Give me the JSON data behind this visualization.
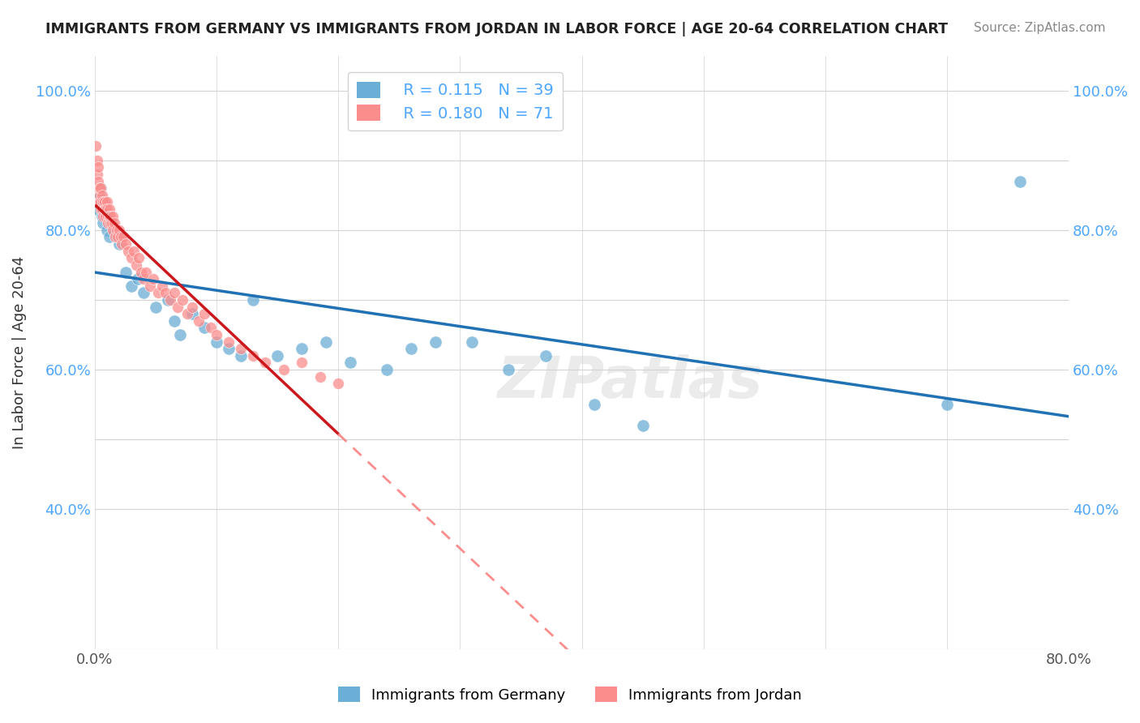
{
  "title": "IMMIGRANTS FROM GERMANY VS IMMIGRANTS FROM JORDAN IN LABOR FORCE | AGE 20-64 CORRELATION CHART",
  "source": "Source: ZipAtlas.com",
  "xlabel_label": "Immigrants from Germany",
  "ylabel_label": "In Labor Force | Age 20-64",
  "legend_label1": "Immigrants from Germany",
  "legend_label2": "Immigrants from Jordan",
  "R_germany": 0.115,
  "N_germany": 39,
  "R_jordan": 0.18,
  "N_jordan": 71,
  "xlim": [
    0.0,
    0.8
  ],
  "ylim": [
    0.2,
    1.05
  ],
  "color_germany": "#6baed6",
  "color_jordan": "#fc8d8d",
  "color_germany_line": "#2171b5",
  "color_jordan_line": "#cb181d",
  "color_jordan_dashed": "#fc8d8d",
  "watermark": "ZIPatlas",
  "germany_x": [
    0.001,
    0.002,
    0.003,
    0.004,
    0.005,
    0.006,
    0.007,
    0.008,
    0.01,
    0.012,
    0.02,
    0.025,
    0.03,
    0.035,
    0.04,
    0.05,
    0.06,
    0.065,
    0.07,
    0.08,
    0.09,
    0.1,
    0.11,
    0.12,
    0.13,
    0.15,
    0.17,
    0.19,
    0.21,
    0.24,
    0.26,
    0.28,
    0.31,
    0.34,
    0.37,
    0.41,
    0.45,
    0.7,
    0.76
  ],
  "germany_y": [
    0.83,
    0.84,
    0.83,
    0.85,
    0.86,
    0.82,
    0.81,
    0.84,
    0.8,
    0.79,
    0.78,
    0.74,
    0.72,
    0.73,
    0.71,
    0.69,
    0.7,
    0.67,
    0.65,
    0.68,
    0.66,
    0.64,
    0.63,
    0.62,
    0.7,
    0.62,
    0.63,
    0.64,
    0.61,
    0.6,
    0.63,
    0.64,
    0.64,
    0.6,
    0.62,
    0.55,
    0.52,
    0.55,
    0.87
  ],
  "jordan_x": [
    0.001,
    0.002,
    0.002,
    0.003,
    0.003,
    0.003,
    0.004,
    0.004,
    0.004,
    0.005,
    0.005,
    0.005,
    0.006,
    0.006,
    0.007,
    0.007,
    0.008,
    0.008,
    0.009,
    0.009,
    0.01,
    0.01,
    0.011,
    0.011,
    0.012,
    0.012,
    0.013,
    0.013,
    0.014,
    0.015,
    0.015,
    0.016,
    0.017,
    0.018,
    0.019,
    0.02,
    0.021,
    0.022,
    0.023,
    0.025,
    0.027,
    0.03,
    0.032,
    0.034,
    0.036,
    0.038,
    0.04,
    0.042,
    0.045,
    0.048,
    0.052,
    0.055,
    0.058,
    0.062,
    0.065,
    0.068,
    0.072,
    0.076,
    0.08,
    0.085,
    0.09,
    0.095,
    0.1,
    0.11,
    0.12,
    0.13,
    0.14,
    0.155,
    0.17,
    0.185,
    0.2
  ],
  "jordan_y": [
    0.92,
    0.9,
    0.88,
    0.86,
    0.87,
    0.89,
    0.84,
    0.85,
    0.86,
    0.83,
    0.84,
    0.86,
    0.85,
    0.83,
    0.84,
    0.82,
    0.83,
    0.84,
    0.82,
    0.83,
    0.84,
    0.83,
    0.82,
    0.81,
    0.83,
    0.82,
    0.81,
    0.82,
    0.81,
    0.82,
    0.8,
    0.81,
    0.79,
    0.8,
    0.79,
    0.8,
    0.79,
    0.78,
    0.79,
    0.78,
    0.77,
    0.76,
    0.77,
    0.75,
    0.76,
    0.74,
    0.73,
    0.74,
    0.72,
    0.73,
    0.71,
    0.72,
    0.71,
    0.7,
    0.71,
    0.69,
    0.7,
    0.68,
    0.69,
    0.67,
    0.68,
    0.66,
    0.65,
    0.64,
    0.63,
    0.62,
    0.61,
    0.6,
    0.61,
    0.59,
    0.58
  ]
}
